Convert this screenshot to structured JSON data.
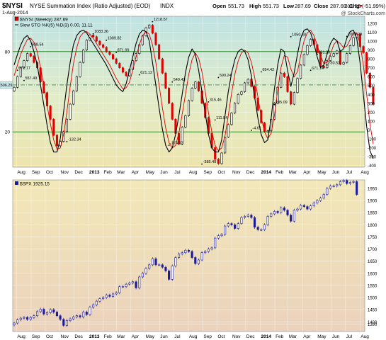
{
  "header": {
    "symbol": "$NYSI",
    "name": "NYSE Summation Index (Ratio Adjusted) (EOD)",
    "exchange": "INDX",
    "date": "1-Aug-2014",
    "open_label": "Open",
    "open": "551.73",
    "high_label": "High",
    "high": "551.73",
    "low_label": "Low",
    "low": "287.69",
    "close_label": "Close",
    "close": "287.69",
    "chg_label": "Chg",
    "chg": "-311.52 (-51.99%)",
    "chg_icon": "down-arrow-icon",
    "logo_text": "@ StockCharts.com"
  },
  "colors": {
    "up_candle": "#ffffff",
    "down_candle": "#e00000",
    "candle_outline": "#000000",
    "spx_candle": "#1a1a9a",
    "sto_slow": "#000000",
    "sto_signal": "#e00000",
    "ob_line": "#2a8a2a",
    "mid_line": "#2a8a2a"
  },
  "chart_data": [
    {
      "type": "candlestick",
      "title": "$NYSI (Weekly) 287.69",
      "legend": [
        {
          "name": "$NYSI (Weekly) 287.69"
        },
        {
          "name": "Slow STO %K(5) %D(3) 0.00, 11.11"
        }
      ],
      "y_ticks": [
        -400,
        -300,
        -200,
        -100,
        0,
        100,
        200,
        300,
        400,
        500,
        600,
        700,
        800,
        900,
        1000,
        1100,
        1200
      ],
      "ylim": [
        -420,
        1280
      ],
      "ref_lines": [
        {
          "value": 80,
          "label": "80"
        },
        {
          "value": 20,
          "label": "20"
        }
      ],
      "mid_line": {
        "value": 506.29,
        "label": "506.29"
      },
      "annotations": [
        {
          "text": "672.17",
          "x": "2012-08-03",
          "y": 672
        },
        {
          "text": "938.54",
          "x": "2012-08-31",
          "y": 938
        },
        {
          "text": "557.49",
          "x": "2012-08-17",
          "y": 557
        },
        {
          "text": "-132.34",
          "x": "2012-11-16",
          "y": -132
        },
        {
          "text": "1083.36",
          "x": "2013-01-11",
          "y": 1083
        },
        {
          "text": "1009.82",
          "x": "2013-02-08",
          "y": 1010
        },
        {
          "text": "871.99",
          "x": "2013-03-01",
          "y": 872
        },
        {
          "text": "621.12",
          "x": "2013-04-19",
          "y": 621
        },
        {
          "text": "1218.57",
          "x": "2013-05-17",
          "y": 1219
        },
        {
          "text": "540.43",
          "x": "2013-06-28",
          "y": 540
        },
        {
          "text": "-174.17",
          "x": "2013-06-21",
          "y": -174
        },
        {
          "text": "-385.48",
          "x": "2013-08-30",
          "y": -385
        },
        {
          "text": "315.46",
          "x": "2013-09-13",
          "y": 315
        },
        {
          "text": "590.24",
          "x": "2013-10-04",
          "y": 590
        },
        {
          "text": "111.84",
          "x": "2013-09-27",
          "y": 112
        },
        {
          "text": "-4.61",
          "x": "2013-12-13",
          "y": -5
        },
        {
          "text": "654.42",
          "x": "2014-01-03",
          "y": 654
        },
        {
          "text": "285.09",
          "x": "2014-01-31",
          "y": 285
        },
        {
          "text": "1050.48",
          "x": "2014-03-07",
          "y": 1050
        },
        {
          "text": "671.14",
          "x": "2014-04-18",
          "y": 671
        },
        {
          "text": "851.20",
          "x": "2014-05-02",
          "y": 851
        },
        {
          "text": "730.52",
          "x": "2014-05-23",
          "y": 731
        },
        {
          "text": "1053.20",
          "x": "2014-07-04",
          "y": 1053
        }
      ],
      "closes": [
        480,
        600,
        700,
        780,
        860,
        830,
        760,
        700,
        540,
        420,
        270,
        120,
        -60,
        -180,
        -130,
        -20,
        120,
        290,
        440,
        600,
        760,
        900,
        1010,
        1070,
        1050,
        1000,
        960,
        930,
        880,
        850,
        800,
        750,
        700,
        650,
        610,
        680,
        780,
        860,
        960,
        1060,
        1150,
        1180,
        1090,
        960,
        800,
        640,
        470,
        300,
        120,
        -40,
        -160,
        30,
        160,
        330,
        470,
        540,
        440,
        300,
        140,
        -40,
        -200,
        -330,
        -380,
        -260,
        -80,
        60,
        190,
        300,
        400,
        430,
        530,
        570,
        490,
        360,
        220,
        80,
        -20,
        -10,
        120,
        300,
        480,
        640,
        600,
        430,
        290,
        420,
        580,
        730,
        850,
        950,
        1020,
        960,
        870,
        720,
        700,
        780,
        830,
        860,
        890,
        740,
        760,
        860,
        950,
        1040,
        1080,
        940,
        870,
        640,
        480,
        288
      ],
      "sto_k": [
        70,
        78,
        85,
        90,
        92,
        88,
        80,
        70,
        55,
        40,
        25,
        12,
        5,
        5,
        15,
        35,
        55,
        72,
        85,
        92,
        95,
        96,
        94,
        90,
        86,
        82,
        78,
        74,
        70,
        65,
        60,
        55,
        52,
        50,
        56,
        66,
        76,
        86,
        93,
        96,
        95,
        88,
        72,
        55,
        38,
        22,
        10,
        5,
        8,
        18,
        32,
        48,
        64,
        76,
        82,
        78,
        66,
        50,
        34,
        18,
        8,
        5,
        5,
        14,
        32,
        50,
        64,
        74,
        80,
        82,
        80,
        74,
        62,
        46,
        30,
        18,
        12,
        14,
        30,
        52,
        70,
        82,
        80,
        66,
        54,
        64,
        78,
        90,
        96,
        97,
        94,
        86,
        76,
        68,
        70,
        78,
        86,
        90,
        88,
        80,
        82,
        90,
        95,
        96,
        90,
        72,
        48,
        24,
        6,
        0
      ],
      "sto_d": [
        62,
        70,
        78,
        84,
        89,
        90,
        87,
        80,
        68,
        55,
        40,
        26,
        14,
        7,
        8,
        18,
        35,
        54,
        71,
        83,
        91,
        94,
        95,
        93,
        90,
        86,
        82,
        78,
        74,
        70,
        65,
        60,
        56,
        52,
        53,
        57,
        66,
        76,
        85,
        92,
        95,
        93,
        85,
        72,
        55,
        38,
        23,
        12,
        8,
        10,
        19,
        33,
        48,
        63,
        74,
        79,
        75,
        65,
        50,
        34,
        20,
        10,
        6,
        8,
        17,
        32,
        49,
        63,
        73,
        79,
        81,
        79,
        72,
        61,
        46,
        31,
        20,
        15,
        19,
        32,
        51,
        68,
        77,
        76,
        67,
        61,
        65,
        77,
        88,
        94,
        96,
        92,
        85,
        77,
        71,
        72,
        78,
        85,
        88,
        86,
        83,
        84,
        89,
        94,
        94,
        86,
        70,
        48,
        26,
        11
      ],
      "x_labels": [
        "Aug",
        "Sep",
        "Oct",
        "Nov",
        "Dec",
        "2013",
        "Feb",
        "Mar",
        "Apr",
        "May",
        "Jun",
        "Jul",
        "Aug",
        "Sep",
        "Oct",
        "Nov",
        "Dec",
        "2014",
        "Feb",
        "Mar",
        "Apr",
        "May",
        "Jun",
        "Jul",
        "Aug"
      ]
    },
    {
      "type": "candlestick",
      "title": "$SPX 1925.15",
      "legend": [
        {
          "name": "$SPX 1925.15"
        }
      ],
      "y_ticks": [
        1390,
        1400,
        1450,
        1500,
        1550,
        1600,
        1650,
        1700,
        1750,
        1800,
        1850,
        1900,
        1950
      ],
      "ylim": [
        1360,
        1985
      ],
      "closes": [
        1395,
        1408,
        1415,
        1418,
        1410,
        1418,
        1425,
        1442,
        1452,
        1432,
        1438,
        1450,
        1440,
        1425,
        1410,
        1385,
        1405,
        1412,
        1420,
        1425,
        1420,
        1440,
        1430,
        1460,
        1470,
        1485,
        1495,
        1500,
        1510,
        1505,
        1515,
        1520,
        1545,
        1545,
        1555,
        1560,
        1565,
        1540,
        1585,
        1600,
        1620,
        1635,
        1660,
        1635,
        1635,
        1625,
        1610,
        1575,
        1630,
        1665,
        1680,
        1685,
        1695,
        1690,
        1665,
        1640,
        1655,
        1685,
        1690,
        1700,
        1705,
        1745,
        1755,
        1760,
        1795,
        1805,
        1800,
        1785,
        1805,
        1830,
        1835,
        1840,
        1830,
        1790,
        1780,
        1780,
        1800,
        1835,
        1845,
        1855,
        1850,
        1870,
        1860,
        1840,
        1815,
        1860,
        1865,
        1880,
        1875,
        1865,
        1878,
        1890,
        1900,
        1910,
        1925,
        1950,
        1960,
        1960,
        1965,
        1978,
        1983,
        1970,
        1975,
        1978,
        1925
      ],
      "x_labels": [
        "Aug",
        "Sep",
        "Oct",
        "Nov",
        "Dec",
        "2013",
        "Feb",
        "Mar",
        "Apr",
        "May",
        "Jun",
        "Jul",
        "Aug",
        "Sep",
        "Oct",
        "Nov",
        "Dec",
        "2014",
        "Feb",
        "Mar",
        "Apr",
        "May",
        "Jun",
        "Jul",
        "Aug"
      ]
    }
  ]
}
